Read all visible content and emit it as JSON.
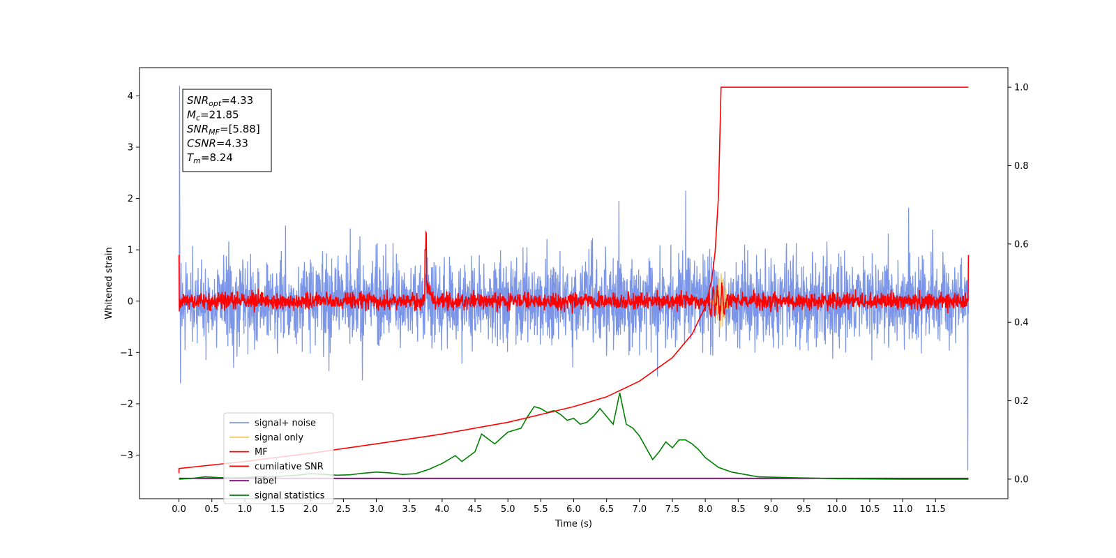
{
  "chart_data": {
    "type": "line",
    "title": "",
    "xlabel": "Time (s)",
    "ylabel": "Whitened strain",
    "xlim": [
      -0.6,
      12.6
    ],
    "ylim": [
      -3.85,
      4.55
    ],
    "y2lim": [
      -0.05,
      1.05
    ],
    "x_ticks": [
      0.0,
      0.5,
      1.0,
      1.5,
      2.0,
      2.5,
      3.0,
      3.5,
      4.0,
      4.5,
      5.0,
      5.5,
      6.0,
      6.5,
      7.0,
      7.5,
      8.0,
      8.5,
      9.0,
      9.5,
      10.0,
      10.5,
      11.0,
      11.5
    ],
    "x_tick_labels": [
      "0.0",
      "0.5",
      "1.0",
      "1.5",
      "2.0",
      "2.5",
      "3.0",
      "3.5",
      "4.0",
      "4.5",
      "5.0",
      "5.5",
      "6.0",
      "6.5",
      "7.0",
      "7.5",
      "8.0",
      "8.5",
      "9.0",
      "9.5",
      "10.0",
      "10.5",
      "11.0",
      "11.5"
    ],
    "y_ticks": [
      -3,
      -2,
      -1,
      0,
      1,
      2,
      3,
      4
    ],
    "y_tick_labels": [
      "−3",
      "−2",
      "−1",
      "0",
      "1",
      "2",
      "3",
      "4"
    ],
    "y2_ticks": [
      0.0,
      0.2,
      0.4,
      0.6,
      0.8,
      1.0
    ],
    "y2_tick_labels": [
      "0.0",
      "0.2",
      "0.4",
      "0.6",
      "0.8",
      "1.0"
    ],
    "grid": false,
    "legend_placement": "lower-left",
    "colors": {
      "signal_noise": "#7b96e8",
      "signal_only": "#f5c86a",
      "mf": "#ff0000",
      "cumulative": "#ff0000",
      "label": "#800080",
      "statistics": "#008000"
    },
    "series": [
      {
        "key": "signal_noise",
        "name": "signal+ noise",
        "axis": "left",
        "x_range": [
          0.0,
          12.0
        ],
        "amplitude_std": 0.6,
        "min": -3.3,
        "max": 4.2
      },
      {
        "key": "signal_only",
        "name": "signal only",
        "axis": "left",
        "peak_x": 8.24,
        "peak_amplitude": 0.55
      },
      {
        "key": "mf",
        "name": "MF",
        "axis": "left",
        "x_range": [
          0.0,
          12.0
        ],
        "amplitude_std": 0.12,
        "edge_value": 0.9,
        "bump_x": 3.75,
        "bump_value": 1.0
      },
      {
        "key": "cumulative",
        "name": "cumilative SNR",
        "axis": "right",
        "x": [
          0.0,
          1.0,
          2.0,
          3.0,
          4.0,
          5.0,
          6.0,
          6.5,
          7.0,
          7.5,
          7.8,
          8.0,
          8.1,
          8.15,
          8.2,
          8.24,
          8.3,
          9.0,
          10.0,
          11.0,
          11.5,
          12.0
        ],
        "y": [
          0.027,
          0.045,
          0.066,
          0.09,
          0.115,
          0.145,
          0.185,
          0.21,
          0.25,
          0.31,
          0.37,
          0.44,
          0.51,
          0.58,
          0.72,
          1.0,
          1.0,
          1.0,
          1.0,
          1.0,
          1.0,
          1.0
        ]
      },
      {
        "key": "label",
        "name": "label",
        "axis": "right",
        "x": [
          0.0,
          12.0
        ],
        "y": [
          0.002,
          0.002
        ]
      },
      {
        "key": "statistics",
        "name": "signal statistics",
        "axis": "right",
        "x": [
          0.0,
          0.2,
          0.4,
          0.6,
          0.8,
          1.0,
          1.2,
          1.4,
          1.6,
          1.8,
          2.0,
          2.2,
          2.4,
          2.6,
          2.8,
          3.0,
          3.2,
          3.4,
          3.6,
          3.8,
          4.0,
          4.2,
          4.3,
          4.5,
          4.6,
          4.8,
          5.0,
          5.2,
          5.3,
          5.4,
          5.5,
          5.6,
          5.7,
          5.8,
          5.9,
          6.0,
          6.1,
          6.2,
          6.3,
          6.4,
          6.5,
          6.6,
          6.7,
          6.8,
          6.9,
          7.0,
          7.1,
          7.2,
          7.3,
          7.4,
          7.5,
          7.6,
          7.7,
          7.8,
          7.9,
          8.0,
          8.2,
          8.4,
          8.6,
          8.8,
          9.0,
          9.5,
          10.0,
          11.0,
          12.0
        ],
        "y": [
          0.0,
          0.002,
          0.006,
          0.004,
          0.003,
          0.004,
          0.006,
          0.005,
          0.008,
          0.01,
          0.014,
          0.012,
          0.01,
          0.011,
          0.015,
          0.018,
          0.016,
          0.012,
          0.014,
          0.025,
          0.04,
          0.06,
          0.045,
          0.07,
          0.115,
          0.09,
          0.12,
          0.13,
          0.16,
          0.185,
          0.18,
          0.17,
          0.175,
          0.165,
          0.15,
          0.155,
          0.14,
          0.145,
          0.16,
          0.18,
          0.16,
          0.14,
          0.22,
          0.14,
          0.13,
          0.11,
          0.08,
          0.05,
          0.07,
          0.095,
          0.08,
          0.1,
          0.1,
          0.09,
          0.075,
          0.055,
          0.03,
          0.018,
          0.012,
          0.006,
          0.005,
          0.003,
          0.001,
          0.0,
          0.0
        ]
      }
    ],
    "annotation_lines": [
      {
        "var": "SNR",
        "sub": "opt",
        "value": "=4.33"
      },
      {
        "var": "M",
        "sub": "c",
        "value": "=21.85"
      },
      {
        "var": "SNR",
        "sub": "MF",
        "value": "=[5.88]"
      },
      {
        "var": "CSNR",
        "sub": "",
        "value": "=4.33"
      },
      {
        "var": "T",
        "sub": "m",
        "value": "=8.24"
      }
    ]
  }
}
